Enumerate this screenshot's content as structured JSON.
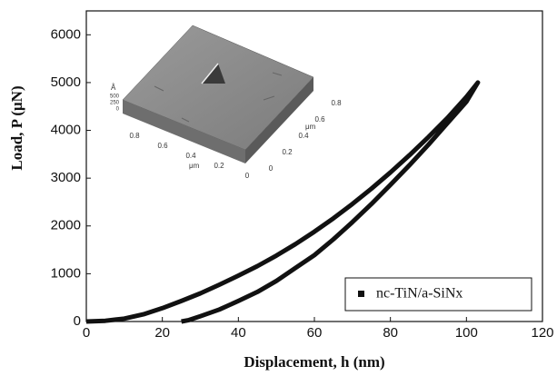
{
  "chart_data": {
    "type": "line",
    "x_label": "Displacement, h (nm)",
    "y_label": "Load, P (μN)",
    "xlim": [
      0,
      120
    ],
    "xticks": [
      0,
      20,
      40,
      60,
      80,
      100,
      120
    ],
    "ylim": [
      0,
      6500
    ],
    "yticks": [
      0,
      1000,
      2000,
      3000,
      4000,
      5000,
      6000
    ],
    "legend": "lower right",
    "series": [
      {
        "name": "nc-TiN/a-SiNx",
        "color": "#111111",
        "x": [
          0,
          5,
          10,
          15,
          20,
          25,
          30,
          35,
          40,
          45,
          50,
          55,
          60,
          65,
          70,
          75,
          80,
          85,
          90,
          95,
          100,
          103,
          100,
          95,
          90,
          85,
          80,
          75,
          70,
          65,
          60,
          55,
          50,
          45,
          40,
          35,
          30,
          27,
          25
        ],
        "values": [
          0,
          15,
          60,
          150,
          280,
          430,
          590,
          770,
          960,
          1160,
          1380,
          1620,
          1880,
          2160,
          2460,
          2780,
          3120,
          3480,
          3860,
          4260,
          4700,
          5000,
          4600,
          4150,
          3700,
          3270,
          2860,
          2460,
          2080,
          1720,
          1390,
          1120,
          850,
          620,
          430,
          250,
          110,
          30,
          0
        ]
      }
    ],
    "inset": {
      "front_ticks": [
        "0.8",
        "0.6",
        "0.4",
        "0.2",
        "0"
      ],
      "side_ticks": [
        "0",
        "0.2",
        "0.4",
        "0.6",
        "0.8"
      ],
      "unit": "μm",
      "z_unit": "Å",
      "z_ticks": [
        "500",
        "250",
        "0"
      ]
    }
  }
}
